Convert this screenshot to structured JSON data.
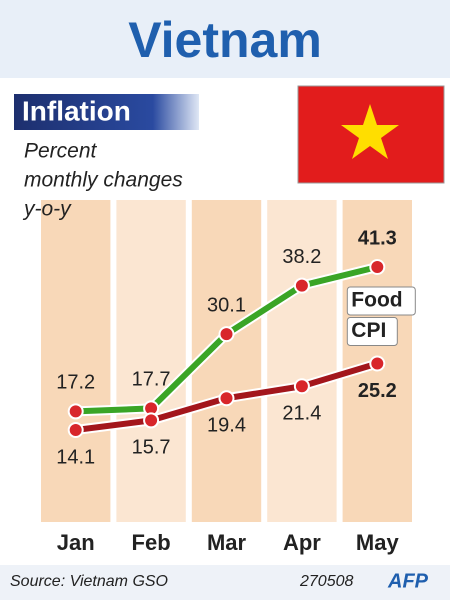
{
  "title": "Vietnam",
  "chart_data": {
    "type": "line",
    "title": "Inflation",
    "subtitle": [
      "Percent",
      "monthly changes",
      "y-o-y"
    ],
    "categories": [
      "Jan",
      "Feb",
      "Mar",
      "Apr",
      "May"
    ],
    "series": [
      {
        "name": "Food",
        "color": "#3aa526",
        "values": [
          17.2,
          17.7,
          30.1,
          38.2,
          41.3
        ]
      },
      {
        "name": "CPI",
        "color": "#a3161c",
        "values": [
          14.1,
          15.7,
          19.4,
          21.4,
          25.2
        ]
      }
    ]
  },
  "footer": {
    "source": "Source: Vietnam GSO",
    "date": "270508",
    "credit": "AFP"
  }
}
